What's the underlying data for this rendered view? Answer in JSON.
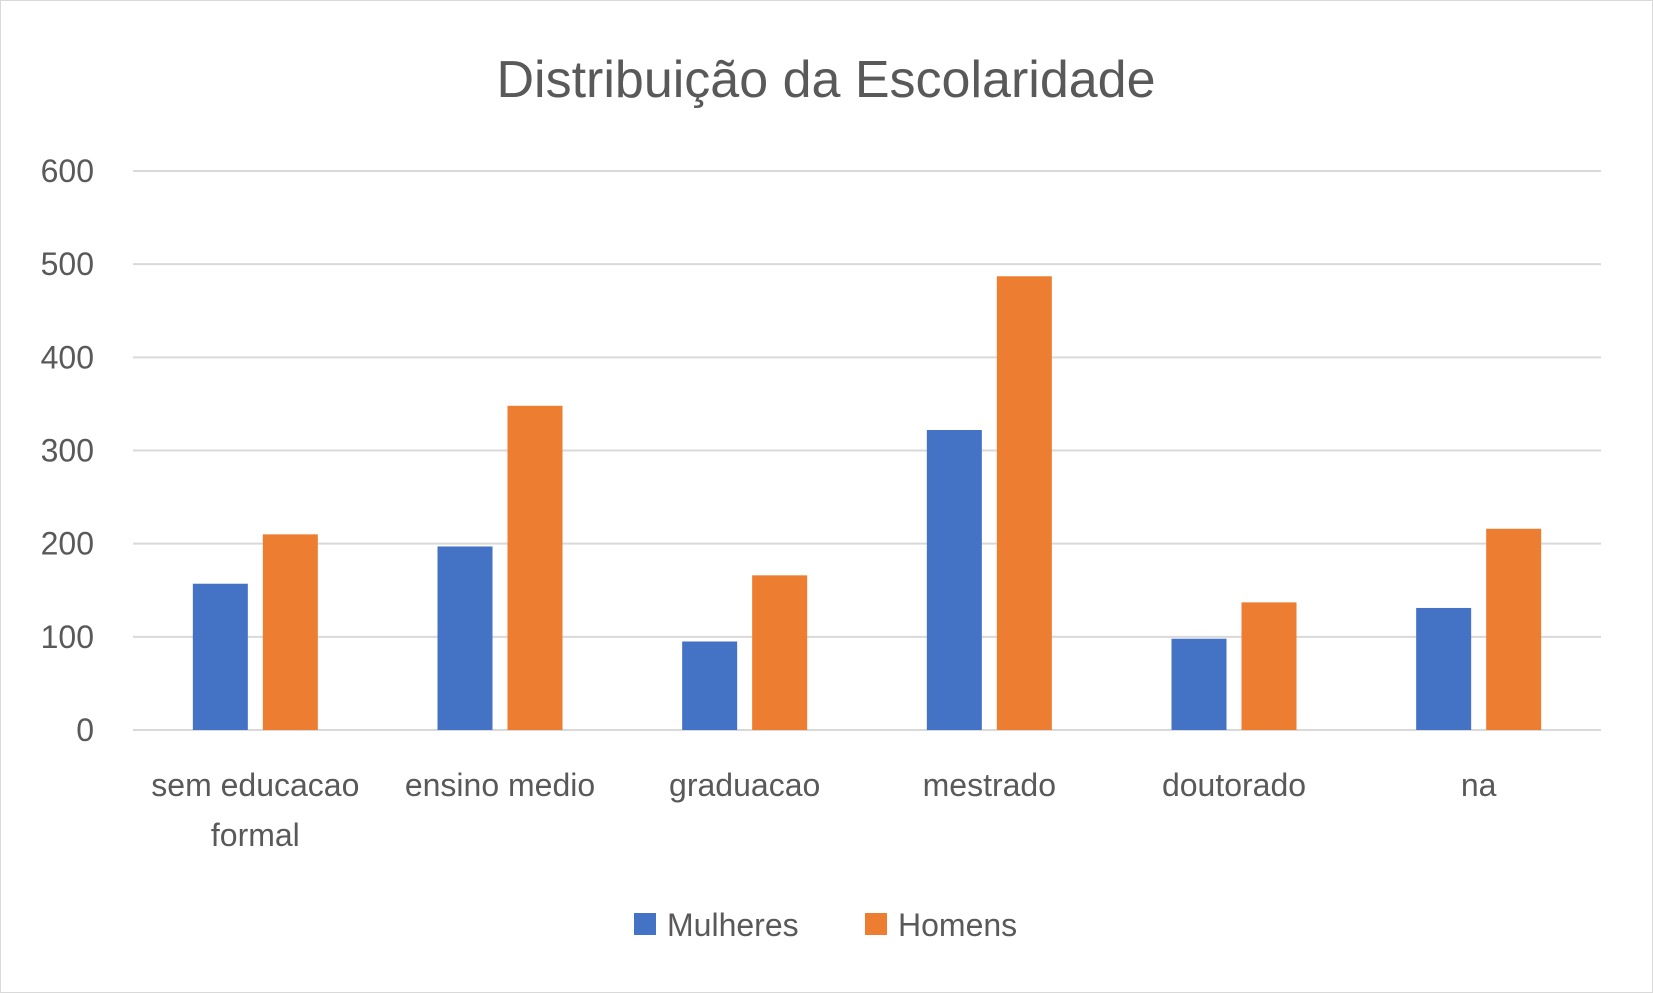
{
  "chart_data": {
    "type": "bar",
    "title": "Distribuição da Escolaridade",
    "xlabel": "",
    "ylabel": "",
    "categories": [
      [
        "sem educacao",
        "formal"
      ],
      [
        "ensino medio"
      ],
      [
        "graduacao"
      ],
      [
        "mestrado"
      ],
      [
        "doutorado"
      ],
      [
        "na"
      ]
    ],
    "series": [
      {
        "name": "Mulheres",
        "color": "#4472c4",
        "values": [
          157,
          197,
          95,
          322,
          98,
          131
        ]
      },
      {
        "name": "Homens",
        "color": "#ed7d31",
        "values": [
          210,
          348,
          166,
          487,
          137,
          216
        ]
      }
    ],
    "ylim": [
      0,
      600
    ],
    "yticks": [
      0,
      100,
      200,
      300,
      400,
      500,
      600
    ],
    "grid": true,
    "legend_position": "bottom"
  }
}
